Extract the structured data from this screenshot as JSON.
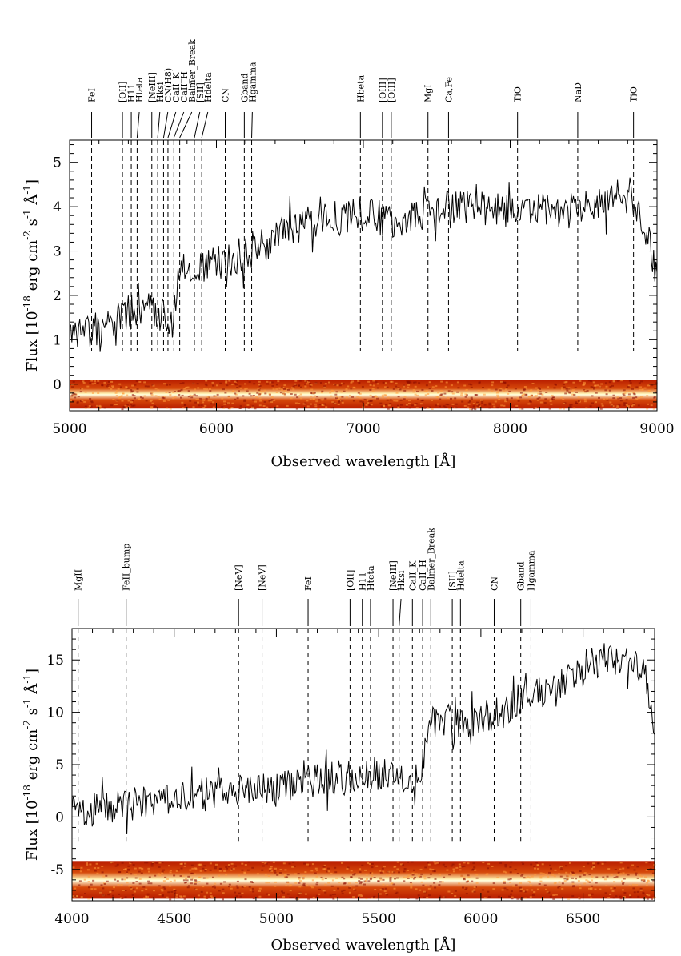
{
  "chart_data": [
    {
      "type": "line",
      "xlabel": "Observed wavelength [Å]",
      "ylabel_main": "Flux [10",
      "ylabel_exp": "-18",
      "ylabel_rest": " erg cm",
      "ylabel_exp2": "-2",
      "ylabel_rest2": " s",
      "ylabel_exp3": "-1",
      "ylabel_rest3": " Å",
      "ylabel_exp4": "-1",
      "ylabel_end": "]",
      "xlim": [
        5000,
        9000
      ],
      "ylim": [
        -0.6,
        5.5
      ],
      "xticks": [
        5000,
        6000,
        7000,
        8000,
        9000
      ],
      "yticks": [
        0,
        1,
        2,
        3,
        4,
        5
      ],
      "spectrum_anchor": {
        "x": [
          5000,
          5100,
          5200,
          5300,
          5400,
          5500,
          5600,
          5700,
          5750,
          5800,
          5900,
          6000,
          6100,
          6200,
          6300,
          6400,
          6500,
          6600,
          6700,
          6800,
          7000,
          7200,
          7400,
          7600,
          7800,
          8000,
          8200,
          8400,
          8600,
          8800,
          8900,
          9000
        ],
        "y": [
          1.0,
          1.1,
          1.2,
          1.4,
          1.6,
          1.7,
          1.6,
          1.5,
          2.6,
          2.7,
          2.6,
          2.7,
          2.8,
          2.9,
          3.1,
          3.3,
          3.5,
          3.6,
          3.7,
          3.8,
          3.8,
          3.7,
          3.8,
          4.0,
          4.0,
          3.9,
          3.9,
          3.9,
          4.0,
          4.2,
          3.8,
          2.5
        ],
        "noise": 0.4
      },
      "lines": [
        {
          "name": "FeI",
          "x": 5150
        },
        {
          "name": "[OII]",
          "x": 5360
        },
        {
          "name": "H11",
          "x": 5420
        },
        {
          "name": "Hteta",
          "x": 5460
        },
        {
          "name": "[NeIII]",
          "x": 5560
        },
        {
          "name": "Hksi",
          "x": 5600
        },
        {
          "name": "CN(H8)",
          "x": 5640
        },
        {
          "name": "CaII_K",
          "x": 5670
        },
        {
          "name": "CaII_H",
          "x": 5710
        },
        {
          "name": "Balmer_Break",
          "x": 5750
        },
        {
          "name": "[SII]",
          "x": 5850
        },
        {
          "name": "Hdelta",
          "x": 5900
        },
        {
          "name": "CN",
          "x": 6060
        },
        {
          "name": "Gband",
          "x": 6190
        },
        {
          "name": "Hgamma",
          "x": 6240
        },
        {
          "name": "Hbeta",
          "x": 6980
        },
        {
          "name": "[OIII]",
          "x": 7130
        },
        {
          "name": "[OIII]",
          "x": 7190
        },
        {
          "name": "MgI",
          "x": 7440
        },
        {
          "name": "Ca,Fe",
          "x": 7580
        },
        {
          "name": "TiO",
          "x": 8050
        },
        {
          "name": "NaD",
          "x": 8460
        },
        {
          "name": "TiO",
          "x": 8840
        }
      ],
      "strip_y": [
        -0.55,
        0.1
      ]
    },
    {
      "type": "line",
      "xlabel": "Observed wavelength [Å]",
      "ylabel_main": "Flux [10",
      "ylabel_exp": "-18",
      "ylabel_rest": " erg cm",
      "ylabel_exp2": "-2",
      "ylabel_rest2": " s",
      "ylabel_exp3": "-1",
      "ylabel_rest3": " Å",
      "ylabel_exp4": "-1",
      "ylabel_end": "]",
      "xlim": [
        4000,
        6850
      ],
      "ylim": [
        -8,
        18
      ],
      "xticks": [
        4000,
        4500,
        5000,
        5500,
        6000,
        6500
      ],
      "yticks": [
        -5,
        0,
        5,
        10,
        15
      ],
      "spectrum_anchor": {
        "x": [
          4000,
          4100,
          4200,
          4300,
          4400,
          4500,
          4600,
          4700,
          4800,
          4900,
          5000,
          5100,
          5200,
          5300,
          5400,
          5500,
          5600,
          5700,
          5750,
          5800,
          5900,
          6000,
          6100,
          6200,
          6300,
          6400,
          6500,
          6600,
          6700,
          6800,
          6850
        ],
        "y": [
          0.5,
          0.8,
          1.0,
          1.2,
          1.5,
          1.8,
          2.0,
          2.3,
          2.5,
          2.8,
          3.0,
          3.2,
          3.5,
          3.8,
          4.0,
          4.2,
          4.0,
          3.5,
          9.0,
          9.5,
          9.0,
          9.5,
          10.0,
          11.0,
          12.0,
          13.0,
          14.5,
          15.0,
          15.0,
          14.0,
          9.0
        ],
        "noise": 1.6
      },
      "lines": [
        {
          "name": "MgII",
          "x": 4030
        },
        {
          "name": "FeII_bump",
          "x": 4265
        },
        {
          "name": "[NeV]",
          "x": 4815
        },
        {
          "name": "[NeV]",
          "x": 4930
        },
        {
          "name": "FeI",
          "x": 5155
        },
        {
          "name": "[OII]",
          "x": 5360
        },
        {
          "name": "H11",
          "x": 5420
        },
        {
          "name": "Hteta",
          "x": 5460
        },
        {
          "name": "[NeIII]",
          "x": 5570
        },
        {
          "name": "Hksi",
          "x": 5600
        },
        {
          "name": "CaII_K",
          "x": 5665
        },
        {
          "name": "CaII_H",
          "x": 5715
        },
        {
          "name": "Balmer_Break",
          "x": 5755
        },
        {
          "name": "[SII]",
          "x": 5860
        },
        {
          "name": "Hdelta",
          "x": 5900
        },
        {
          "name": "CN",
          "x": 6065
        },
        {
          "name": "Gband",
          "x": 6195
        },
        {
          "name": "Hgamma",
          "x": 6245
        }
      ],
      "strip_y": [
        -7.8,
        -4.2
      ]
    }
  ]
}
